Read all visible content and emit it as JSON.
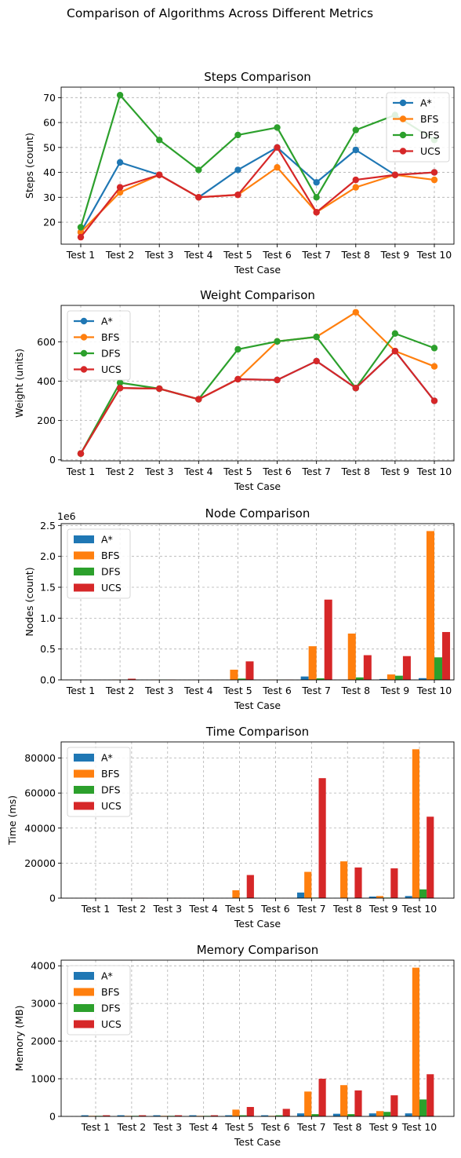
{
  "figure_title": "Comparison of Algorithms Across Different Metrics",
  "chart_data": [
    {
      "type": "line",
      "title": "Steps Comparison",
      "xlabel": "Test Case",
      "ylabel": "Steps (count)",
      "categories": [
        "Test 1",
        "Test 2",
        "Test 3",
        "Test 4",
        "Test 5",
        "Test 6",
        "Test 7",
        "Test 8",
        "Test 9",
        "Test 10"
      ],
      "ylim": [
        11.2,
        74.2
      ],
      "yticks": [
        20,
        30,
        40,
        50,
        60,
        70
      ],
      "grid": true,
      "legend": "upper right",
      "series": [
        {
          "name": "A*",
          "color": "#1f77b4",
          "values": [
            16,
            44,
            39,
            30,
            41,
            50,
            36,
            49,
            39,
            40
          ]
        },
        {
          "name": "BFS",
          "color": "#ff7f0e",
          "values": [
            16,
            32,
            39,
            30,
            31,
            42,
            24,
            34,
            39,
            37
          ]
        },
        {
          "name": "DFS",
          "color": "#2ca02c",
          "values": [
            18,
            71,
            53,
            41,
            55,
            58,
            30,
            57,
            63,
            53
          ]
        },
        {
          "name": "UCS",
          "color": "#d62728",
          "values": [
            14,
            34,
            39,
            30,
            31,
            50,
            24,
            37,
            39,
            40
          ]
        }
      ]
    },
    {
      "type": "line",
      "title": "Weight Comparison",
      "xlabel": "Test Case",
      "ylabel": "Weight (units)",
      "categories": [
        "Test 1",
        "Test 2",
        "Test 3",
        "Test 4",
        "Test 5",
        "Test 6",
        "Test 7",
        "Test 8",
        "Test 9",
        "Test 10"
      ],
      "ylim": [
        -5,
        785
      ],
      "yticks": [
        0,
        200,
        400,
        600
      ],
      "grid": true,
      "legend": "upper left",
      "series": [
        {
          "name": "A*",
          "color": "#1f77b4",
          "values": [
            32,
            365,
            362,
            308,
            410,
            406,
            502,
            365,
            553,
            300
          ]
        },
        {
          "name": "BFS",
          "color": "#ff7f0e",
          "values": [
            32,
            365,
            362,
            308,
            410,
            602,
            625,
            750,
            553,
            475
          ]
        },
        {
          "name": "DFS",
          "color": "#2ca02c",
          "values": [
            32,
            392,
            362,
            308,
            562,
            602,
            625,
            365,
            642,
            568
          ]
        },
        {
          "name": "UCS",
          "color": "#d62728",
          "values": [
            32,
            365,
            362,
            308,
            410,
            406,
            502,
            365,
            553,
            300
          ]
        }
      ]
    },
    {
      "type": "bar",
      "title": "Node Comparison",
      "xlabel": "Test Case",
      "ylabel": "Nodes (count)",
      "offset_label": "1e6",
      "categories": [
        "Test 1",
        "Test 2",
        "Test 3",
        "Test 4",
        "Test 5",
        "Test 6",
        "Test 7",
        "Test 8",
        "Test 9",
        "Test 10"
      ],
      "ylim": [
        0,
        2.53
      ],
      "yticks": [
        0.0,
        0.5,
        1.0,
        1.5,
        2.0,
        2.5
      ],
      "ytick_decimals": 1,
      "grid": true,
      "legend": "upper left",
      "series": [
        {
          "name": "A*",
          "color": "#1f77b4",
          "values": [
            0.0005,
            0.001,
            0.001,
            0.0005,
            0.002,
            0.001,
            0.055,
            0.006,
            0.014,
            0.028
          ]
        },
        {
          "name": "BFS",
          "color": "#ff7f0e",
          "values": [
            0.0005,
            0.006,
            0.006,
            0.001,
            0.165,
            0.006,
            0.545,
            0.75,
            0.088,
            2.41
          ]
        },
        {
          "name": "DFS",
          "color": "#2ca02c",
          "values": [
            0.0005,
            0.002,
            0.006,
            0.001,
            0.021,
            0.005,
            0.025,
            0.04,
            0.068,
            0.365
          ]
        },
        {
          "name": "UCS",
          "color": "#d62728",
          "values": [
            0.0005,
            0.019,
            0.006,
            0.001,
            0.3,
            0.006,
            1.3,
            0.4,
            0.385,
            0.775
          ]
        }
      ]
    },
    {
      "type": "bar",
      "title": "Time Comparison",
      "xlabel": "Test Case",
      "ylabel": "Time (ms)",
      "categories": [
        "Test 1",
        "Test 2",
        "Test 3",
        "Test 4",
        "Test 5",
        "Test 6",
        "Test 7",
        "Test 8",
        "Test 9",
        "Test 10"
      ],
      "ylim": [
        0,
        89200
      ],
      "yticks": [
        0,
        20000,
        40000,
        60000,
        80000
      ],
      "ytick_decimals": 0,
      "grid": true,
      "legend": "upper left",
      "series": [
        {
          "name": "A*",
          "color": "#1f77b4",
          "values": [
            5,
            15,
            10,
            5,
            50,
            20,
            3200,
            100,
            900,
            1200
          ]
        },
        {
          "name": "BFS",
          "color": "#ff7f0e",
          "values": [
            5,
            40,
            30,
            10,
            4500,
            60,
            15000,
            21000,
            1200,
            85000
          ]
        },
        {
          "name": "DFS",
          "color": "#2ca02c",
          "values": [
            5,
            10,
            20,
            5,
            200,
            30,
            300,
            200,
            300,
            5000
          ]
        },
        {
          "name": "UCS",
          "color": "#d62728",
          "values": [
            5,
            150,
            40,
            10,
            13200,
            60,
            68500,
            17500,
            17000,
            46500
          ]
        }
      ]
    },
    {
      "type": "bar",
      "title": "Memory Comparison",
      "xlabel": "Test Case",
      "ylabel": "Memory (MB)",
      "categories": [
        "Test 1",
        "Test 2",
        "Test 3",
        "Test 4",
        "Test 5",
        "Test 6",
        "Test 7",
        "Test 8",
        "Test 9",
        "Test 10"
      ],
      "ylim": [
        0,
        4150
      ],
      "yticks": [
        0,
        1000,
        2000,
        3000,
        4000
      ],
      "ytick_decimals": 0,
      "grid": true,
      "legend": "upper left",
      "series": [
        {
          "name": "A*",
          "color": "#1f77b4",
          "values": [
            30,
            30,
            30,
            30,
            30,
            30,
            80,
            70,
            80,
            80
          ]
        },
        {
          "name": "BFS",
          "color": "#ff7f0e",
          "values": [
            15,
            15,
            15,
            15,
            180,
            15,
            660,
            830,
            140,
            3950
          ]
        },
        {
          "name": "DFS",
          "color": "#2ca02c",
          "values": [
            15,
            15,
            15,
            15,
            30,
            30,
            60,
            60,
            120,
            450
          ]
        },
        {
          "name": "UCS",
          "color": "#d62728",
          "values": [
            30,
            30,
            30,
            30,
            250,
            200,
            1000,
            690,
            560,
            1120
          ]
        }
      ]
    }
  ]
}
